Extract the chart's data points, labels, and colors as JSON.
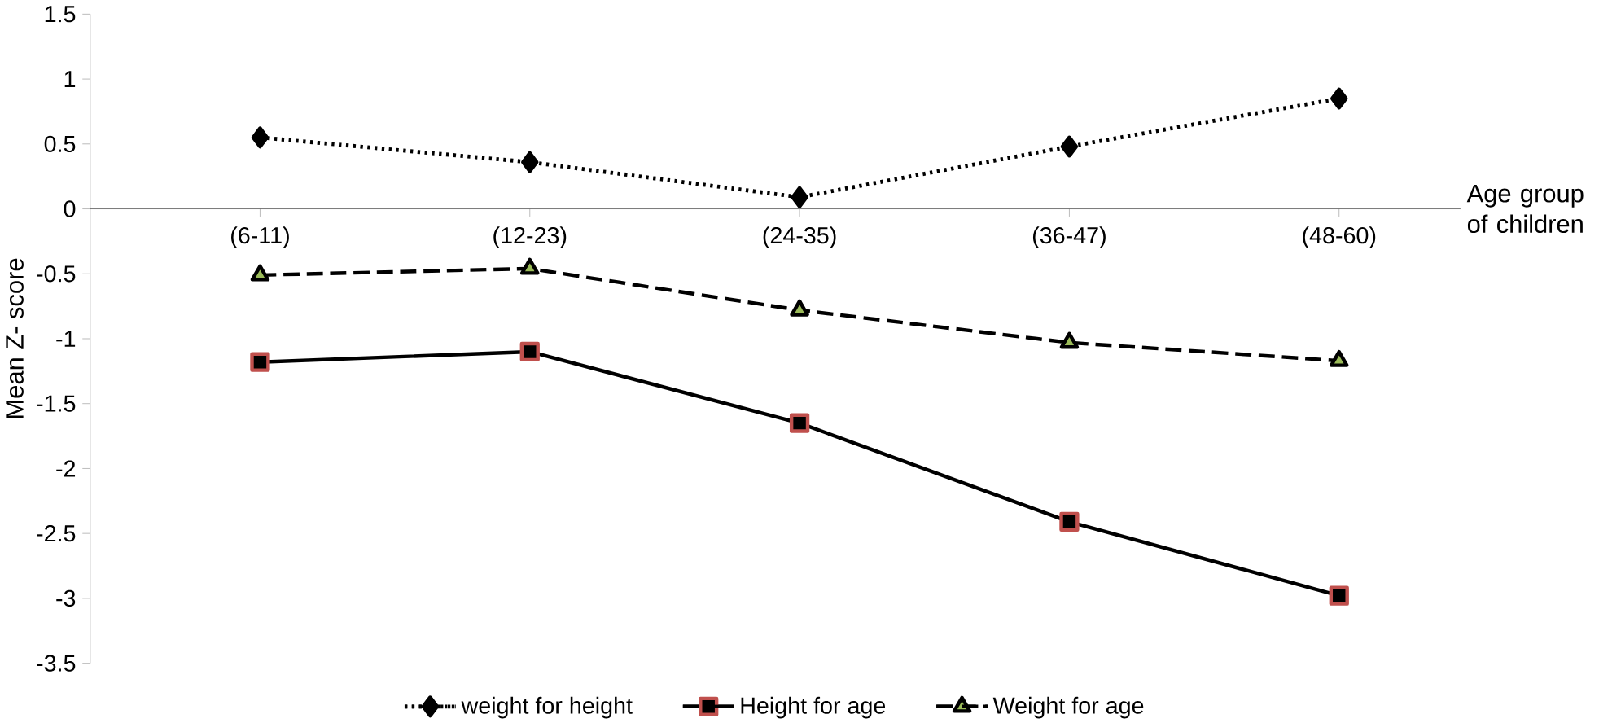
{
  "chart_data": {
    "type": "line",
    "xlabel": "Age group of children",
    "ylabel": "Mean Z- score",
    "categories": [
      "(6-11)",
      "(12-23)",
      "(24-35)",
      "(36-47)",
      "(48-60)"
    ],
    "series": [
      {
        "name": "weight for height",
        "color": "#000000",
        "marker": "diamond",
        "line_style": "dotted",
        "values": [
          0.55,
          0.36,
          0.09,
          0.48,
          0.85
        ]
      },
      {
        "name": "Height for age",
        "color": "#000000",
        "marker": "square",
        "line_style": "solid",
        "values": [
          -1.18,
          -1.1,
          -1.65,
          -2.41,
          -2.98
        ]
      },
      {
        "name": "Weight for age",
        "color": "#000000",
        "marker": "triangle",
        "line_style": "dashed",
        "values": [
          -0.51,
          -0.46,
          -0.78,
          -1.03,
          -1.17
        ]
      }
    ],
    "ylim": [
      -3.5,
      1.5
    ],
    "yticks": [
      -3.5,
      -3,
      -2.5,
      -2,
      -1.5,
      -1,
      -0.5,
      0,
      0.5,
      1,
      1.5
    ],
    "grid": false,
    "legend": "bottom"
  }
}
